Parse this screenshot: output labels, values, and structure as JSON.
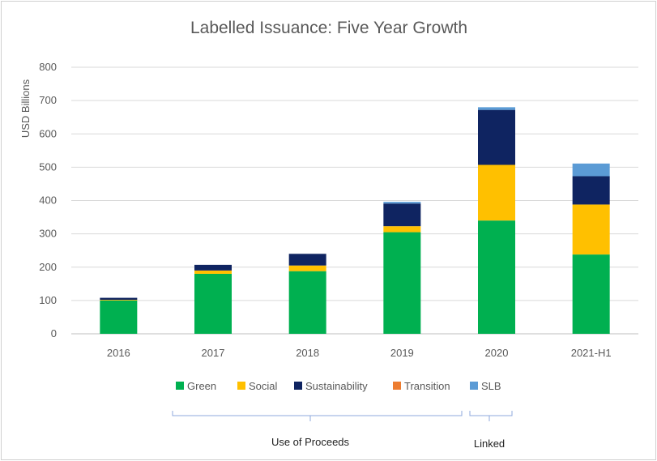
{
  "chart_data": {
    "type": "bar",
    "stacked": true,
    "title": "Labelled Issuance: Five Year Growth",
    "ylabel": "USD Billions",
    "xlabel": "",
    "ylim": [
      0,
      800
    ],
    "yticks": [
      0,
      100,
      200,
      300,
      400,
      500,
      600,
      700,
      800
    ],
    "ytick_labels": [
      "0",
      "100",
      "200",
      "300",
      "400",
      "500",
      "600",
      "700",
      "800"
    ],
    "grid": true,
    "legend_position": "bottom",
    "categories": [
      "2016",
      "2017",
      "2018",
      "2019",
      "2020",
      "2021-H1"
    ],
    "series": [
      {
        "name": "Green",
        "color": "#00b050",
        "values": [
          100,
          180,
          188,
          305,
          340,
          238
        ]
      },
      {
        "name": "Social",
        "color": "#ffc000",
        "values": [
          2,
          10,
          17,
          18,
          167,
          150
        ]
      },
      {
        "name": "Sustainability",
        "color": "#0f2461",
        "values": [
          6,
          17,
          35,
          68,
          165,
          85
        ]
      },
      {
        "name": "Transition",
        "color": "#ed7d31",
        "values": [
          0,
          0,
          0,
          0,
          0,
          0
        ]
      },
      {
        "name": "SLB",
        "color": "#5b9bd5",
        "values": [
          0,
          0,
          0,
          5,
          8,
          38
        ]
      }
    ],
    "groups": [
      {
        "label": "Use of Proceeds"
      },
      {
        "label": "Linked"
      }
    ]
  }
}
